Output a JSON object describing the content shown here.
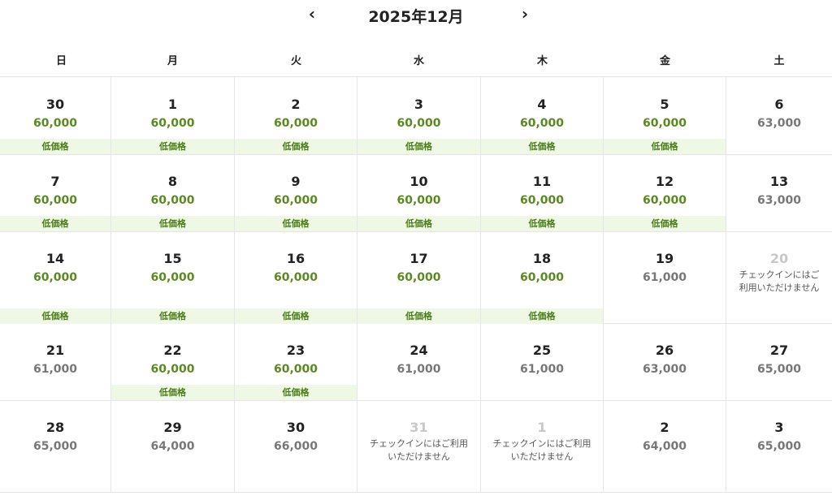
{
  "header": {
    "title": "2025年12月",
    "prev_icon": "chevron-left",
    "next_icon": "chevron-right"
  },
  "weekdays": [
    "日",
    "月",
    "火",
    "水",
    "木",
    "金",
    "土"
  ],
  "colors": {
    "green_price": "#5a8a1f",
    "gray_price": "#777777",
    "badge_bg": "#eef8e4"
  },
  "weeks": [
    [
      {
        "day": "30",
        "price": "60,000",
        "badge": "低価格"
      },
      {
        "day": "1",
        "price": "60,000",
        "badge": "低価格"
      },
      {
        "day": "2",
        "price": "60,000",
        "badge": "低価格"
      },
      {
        "day": "3",
        "price": "60,000",
        "badge": "低価格"
      },
      {
        "day": "4",
        "price": "60,000",
        "badge": "低価格"
      },
      {
        "day": "5",
        "price": "60,000",
        "badge": "低価格"
      },
      {
        "day": "6",
        "price": "63,000"
      }
    ],
    [
      {
        "day": "7",
        "price": "60,000",
        "badge": "低価格"
      },
      {
        "day": "8",
        "price": "60,000",
        "badge": "低価格"
      },
      {
        "day": "9",
        "price": "60,000",
        "badge": "低価格"
      },
      {
        "day": "10",
        "price": "60,000",
        "badge": "低価格"
      },
      {
        "day": "11",
        "price": "60,000",
        "badge": "低価格"
      },
      {
        "day": "12",
        "price": "60,000",
        "badge": "低価格"
      },
      {
        "day": "13",
        "price": "63,000"
      }
    ],
    [
      {
        "day": "14",
        "price": "60,000",
        "badge": "低価格"
      },
      {
        "day": "15",
        "price": "60,000",
        "badge": "低価格"
      },
      {
        "day": "16",
        "price": "60,000",
        "badge": "低価格"
      },
      {
        "day": "17",
        "price": "60,000",
        "badge": "低価格"
      },
      {
        "day": "18",
        "price": "60,000",
        "badge": "低価格"
      },
      {
        "day": "19",
        "price": "61,000"
      },
      {
        "day": "20",
        "disabled": true,
        "note": "チェックインにはご利用いただけません"
      }
    ],
    [
      {
        "day": "21",
        "price": "61,000"
      },
      {
        "day": "22",
        "price": "60,000",
        "badge": "低価格"
      },
      {
        "day": "23",
        "price": "60,000",
        "badge": "低価格"
      },
      {
        "day": "24",
        "price": "61,000"
      },
      {
        "day": "25",
        "price": "61,000"
      },
      {
        "day": "26",
        "price": "63,000"
      },
      {
        "day": "27",
        "price": "65,000"
      }
    ],
    [
      {
        "day": "28",
        "price": "65,000"
      },
      {
        "day": "29",
        "price": "64,000"
      },
      {
        "day": "30",
        "price": "66,000"
      },
      {
        "day": "31",
        "disabled": true,
        "note": "チェックインにはご利用いただけません"
      },
      {
        "day": "1",
        "disabled": true,
        "note": "チェックインにはご利用いただけません"
      },
      {
        "day": "2",
        "price": "64,000"
      },
      {
        "day": "3",
        "price": "65,000"
      }
    ]
  ]
}
